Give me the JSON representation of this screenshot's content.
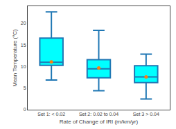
{
  "chart_data": {
    "type": "box",
    "categories": [
      "Set 1: < 0.02",
      "Set 2: 0.02 to 0.04",
      "Set 3 > 0.04"
    ],
    "median": [
      11.0,
      9.5,
      7.6
    ],
    "q1": [
      10.3,
      7.4,
      6.3
    ],
    "q3": [
      16.6,
      11.6,
      10.2
    ],
    "whisker_low": [
      6.9,
      4.4,
      2.5
    ],
    "whisker_high": [
      22.7,
      18.4,
      12.9
    ],
    "mean": [
      11.1,
      9.7,
      7.6
    ],
    "color": "#00FFFF",
    "marker": "circle",
    "xlabel": "Rate of Change of IRI (m/km/yr)",
    "ylabel": "Mean Temperature (°C)",
    "ylim": [
      0,
      24
    ],
    "yticks": [
      0,
      5,
      10,
      15,
      20
    ],
    "grid": false
  }
}
